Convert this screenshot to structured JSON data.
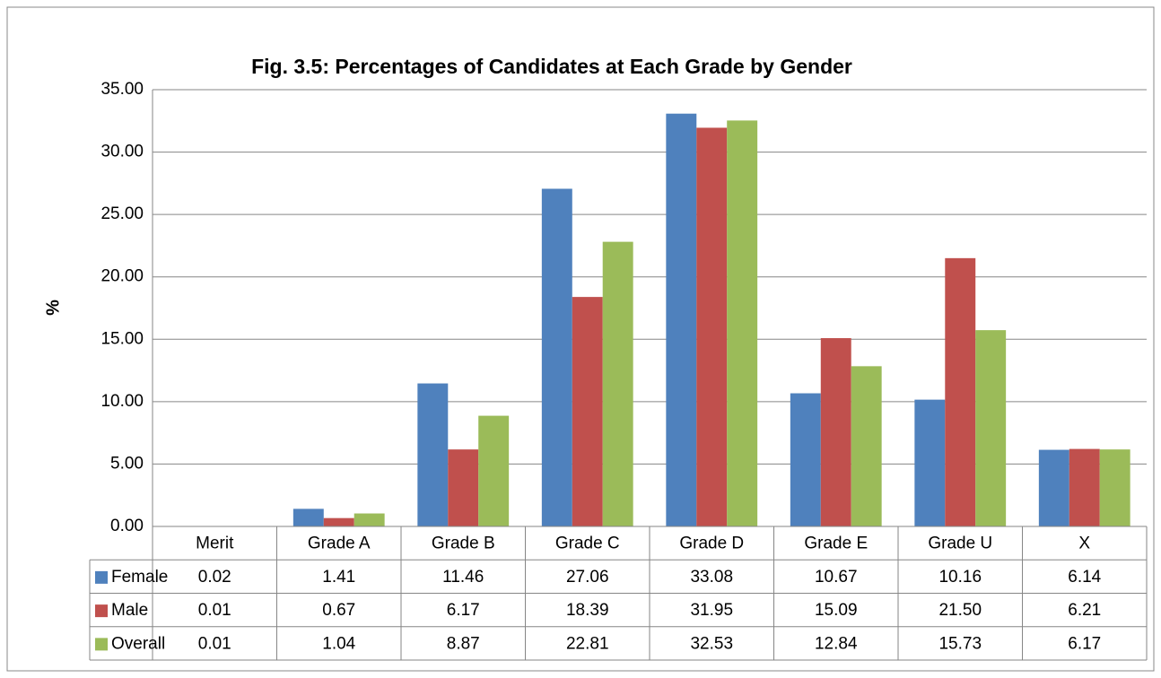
{
  "chart_data": {
    "type": "bar",
    "title": "Fig. 3.5: Percentages of Candidates at Each Grade by Gender",
    "y_label": "%",
    "categories": [
      "Merit",
      "Grade A",
      "Grade B",
      "Grade C",
      "Grade D",
      "Grade E",
      "Grade U",
      "X"
    ],
    "series": [
      {
        "name": "Female",
        "color": "#4f81bd",
        "values": [
          0.02,
          1.41,
          11.46,
          27.06,
          33.08,
          10.67,
          10.16,
          6.14
        ],
        "value_labels": [
          "0.02",
          "1.41",
          "11.46",
          "27.06",
          "33.08",
          "10.67",
          "10.16",
          "6.14"
        ]
      },
      {
        "name": "Male",
        "color": "#c0504d",
        "values": [
          0.01,
          0.67,
          6.17,
          18.39,
          31.95,
          15.09,
          21.5,
          6.21
        ],
        "value_labels": [
          "0.01",
          "0.67",
          "6.17",
          "18.39",
          "31.95",
          "15.09",
          "21.50",
          "6.21"
        ]
      },
      {
        "name": "Overall",
        "color": "#9bbb59",
        "values": [
          0.01,
          1.04,
          8.87,
          22.81,
          32.53,
          12.84,
          15.73,
          6.17
        ],
        "value_labels": [
          "0.01",
          "1.04",
          "8.87",
          "22.81",
          "32.53",
          "12.84",
          "15.73",
          "6.17"
        ]
      }
    ],
    "ylim": [
      0,
      35
    ],
    "yticks": [
      {
        "value": 0,
        "label": "0.00"
      },
      {
        "value": 5,
        "label": "5.00"
      },
      {
        "value": 10,
        "label": "10.00"
      },
      {
        "value": 15,
        "label": "15.00"
      },
      {
        "value": 20,
        "label": "20.00"
      },
      {
        "value": 25,
        "label": "25.00"
      },
      {
        "value": 30,
        "label": "30.00"
      },
      {
        "value": 35,
        "label": "35.00"
      }
    ],
    "grid": true
  }
}
